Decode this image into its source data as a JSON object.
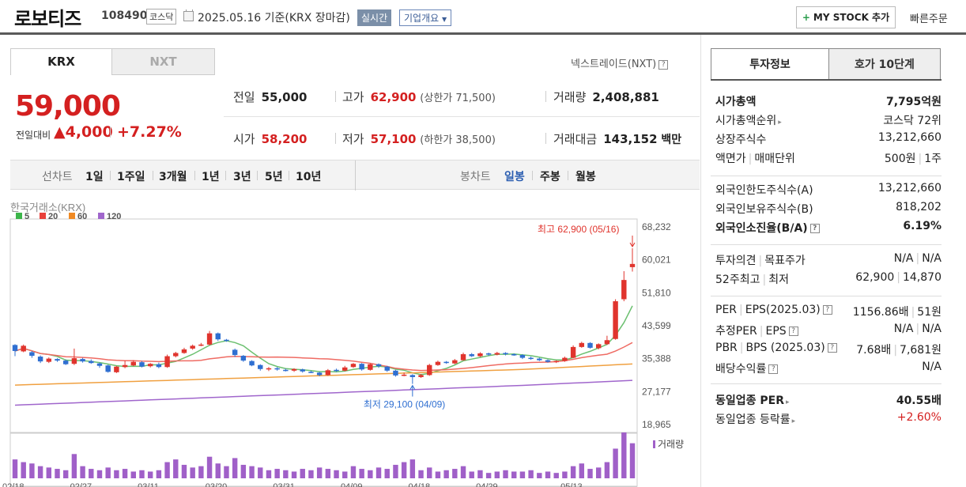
{
  "header": {
    "name": "로보티즈",
    "code": "108490",
    "market": "코스닥",
    "date": "2025.05.16 기준(KRX 장마감)",
    "realtime": "실시간",
    "overview": "기업개요",
    "mystock": "MY STOCK 추가",
    "quick": "빠른주문"
  },
  "exchange_tabs": {
    "krx": "KRX",
    "nxt": "NXT",
    "nextrade": "넥스트레이드(NXT)"
  },
  "price": {
    "current": "59,000",
    "change_label": "전일대비",
    "change": "▲4,000",
    "pct": "+7.27%"
  },
  "stats": {
    "prev_label": "전일",
    "prev": "55,000",
    "high_label": "고가",
    "high": "62,900",
    "upper": "(상한가 71,500)",
    "vol_label": "거래량",
    "vol": "2,408,881",
    "open_label": "시가",
    "open": "58,200",
    "low_label": "저가",
    "low": "57,100",
    "lower": "(하한가 38,500)",
    "amt_label": "거래대금",
    "amt": "143,152",
    "amt_unit": "백만"
  },
  "periods": {
    "line_label": "선차트",
    "line": [
      "1일",
      "1주일",
      "3개월",
      "1년",
      "3년",
      "5년",
      "10년"
    ],
    "candle_label": "봉차트",
    "candle": [
      "일봉",
      "주봉",
      "월봉"
    ]
  },
  "chart_data": {
    "type": "candlestick",
    "source": "한국거래소(KRX)",
    "ma_legend": [
      {
        "name": "5",
        "color": "#3cb54a"
      },
      {
        "name": "20",
        "color": "#e8413b"
      },
      {
        "name": "60",
        "color": "#f08a24"
      },
      {
        "name": "120",
        "color": "#a066cc"
      }
    ],
    "y_ticks": [
      "68,232",
      "60,021",
      "51,810",
      "43,599",
      "35,388",
      "27,177",
      "18,965"
    ],
    "ylim": [
      18965,
      68232
    ],
    "x_ticks": [
      "02/18",
      "02/27",
      "03/11",
      "03/20",
      "03/31",
      "04/09",
      "04/18",
      "04/29",
      "05/13"
    ],
    "high_annotation": "최고 62,900 (05/16)",
    "low_annotation": "최저 29,100 (04/09)",
    "volume_label": "거래량",
    "candles": [
      [
        38800,
        37300,
        39000,
        36000
      ],
      [
        37200,
        38600,
        38900,
        37000
      ],
      [
        37000,
        36100,
        37300,
        35600
      ],
      [
        35900,
        34700,
        36200,
        34300
      ],
      [
        34600,
        35400,
        35700,
        34300
      ],
      [
        35300,
        34900,
        35500,
        34600
      ],
      [
        34900,
        34000,
        35200,
        33800
      ],
      [
        34100,
        35500,
        37900,
        33800
      ],
      [
        35300,
        34700,
        35600,
        34400
      ],
      [
        34800,
        34300,
        35200,
        34100
      ],
      [
        34200,
        33600,
        34400,
        33100
      ],
      [
        33700,
        32100,
        33900,
        31900
      ],
      [
        32000,
        33400,
        33600,
        31800
      ],
      [
        33300,
        33800,
        34900,
        33000
      ],
      [
        33700,
        34600,
        35000,
        33500
      ],
      [
        34500,
        33400,
        34800,
        33200
      ],
      [
        33500,
        34100,
        34300,
        33200
      ],
      [
        34000,
        33300,
        34400,
        33000
      ],
      [
        33300,
        36000,
        36400,
        33100
      ],
      [
        36000,
        36800,
        37100,
        35700
      ],
      [
        36800,
        37700,
        38100,
        36600
      ],
      [
        37900,
        38600,
        38900,
        37600
      ],
      [
        38800,
        38900,
        39300,
        38500
      ],
      [
        38900,
        41700,
        42300,
        38700
      ],
      [
        41700,
        40200,
        41900,
        39800
      ],
      [
        40100,
        39900,
        40300,
        39600
      ],
      [
        37600,
        36300,
        37900,
        35800
      ],
      [
        36100,
        34900,
        36300,
        34600
      ],
      [
        34800,
        33700,
        35000,
        33500
      ],
      [
        33800,
        32800,
        34000,
        32400
      ],
      [
        32700,
        33000,
        33300,
        32300
      ],
      [
        33000,
        32700,
        33300,
        32400
      ],
      [
        32600,
        32400,
        32900,
        32200
      ],
      [
        32400,
        32800,
        33000,
        32100
      ],
      [
        32700,
        32200,
        32900,
        31900
      ],
      [
        32100,
        32000,
        32400,
        31800
      ],
      [
        31900,
        31300,
        32100,
        31000
      ],
      [
        31300,
        32500,
        32800,
        31100
      ],
      [
        32600,
        32400,
        32900,
        32100
      ],
      [
        32400,
        33200,
        33600,
        32200
      ],
      [
        33300,
        34100,
        34300,
        33100
      ],
      [
        34100,
        32700,
        34300,
        32400
      ],
      [
        32600,
        34000,
        34200,
        32400
      ],
      [
        34000,
        33500,
        34200,
        33100
      ],
      [
        33400,
        32400,
        33600,
        32100
      ],
      [
        32400,
        31200,
        32600,
        30900
      ],
      [
        31300,
        31400,
        31900,
        31000
      ],
      [
        31300,
        30800,
        31500,
        29100
      ],
      [
        30800,
        31300,
        31600,
        30600
      ],
      [
        31300,
        33800,
        34100,
        31100
      ],
      [
        33800,
        34600,
        34900,
        33600
      ],
      [
        34600,
        34300,
        34800,
        34100
      ],
      [
        34200,
        35000,
        35300,
        34000
      ],
      [
        35000,
        36500,
        36900,
        34900
      ],
      [
        36500,
        36000,
        36800,
        35800
      ],
      [
        36000,
        36700,
        37000,
        35800
      ],
      [
        36700,
        36400,
        36900,
        36100
      ],
      [
        36400,
        36800,
        37100,
        36200
      ],
      [
        36800,
        36500,
        37000,
        36200
      ],
      [
        36500,
        36300,
        36700,
        36100
      ],
      [
        36300,
        35600,
        36500,
        35300
      ],
      [
        35600,
        35400,
        35900,
        35100
      ],
      [
        35400,
        35000,
        35600,
        34800
      ],
      [
        35000,
        34600,
        35200,
        34400
      ],
      [
        34600,
        34800,
        35000,
        34300
      ],
      [
        34800,
        35600,
        35900,
        34600
      ],
      [
        35600,
        38300,
        38700,
        35500
      ],
      [
        38300,
        39300,
        39600,
        38100
      ],
      [
        39300,
        38100,
        39500,
        37900
      ],
      [
        38000,
        39000,
        39200,
        37700
      ],
      [
        39000,
        40000,
        41100,
        38800
      ],
      [
        40300,
        49700,
        50200,
        40100
      ],
      [
        50200,
        55000,
        57200,
        49700
      ],
      [
        58200,
        59000,
        62900,
        57100
      ]
    ],
    "volumes": [
      14,
      12,
      11,
      9,
      8,
      7,
      6,
      18,
      9,
      7,
      6,
      8,
      6,
      7,
      5,
      6,
      5,
      6,
      12,
      14,
      10,
      8,
      9,
      16,
      11,
      9,
      15,
      10,
      9,
      8,
      6,
      7,
      6,
      5,
      7,
      6,
      8,
      7,
      6,
      5,
      9,
      7,
      6,
      8,
      7,
      10,
      12,
      14,
      6,
      8,
      5,
      6,
      7,
      9,
      5,
      6,
      4,
      5,
      6,
      5,
      5,
      6,
      4,
      5,
      4,
      5,
      9,
      11,
      7,
      8,
      12,
      22,
      34,
      26
    ]
  },
  "right": {
    "tab_a": "투자정보",
    "tab_b": "호가 10단계",
    "rows1": [
      {
        "l": "시가총액",
        "r": "7,795억원",
        "bold": true
      },
      {
        "l": "시가총액순위",
        "r": "코스닥 72위",
        "caret": true
      },
      {
        "l": "상장주식수",
        "r": "13,212,660"
      },
      {
        "l": "액면가",
        "l2": "매매단위",
        "r": "500원",
        "r2": "1주"
      }
    ],
    "rows2": [
      {
        "l": "외국인한도주식수(A)",
        "r": "13,212,660"
      },
      {
        "l": "외국인보유주식수(B)",
        "r": "818,202"
      },
      {
        "l": "외국인소진율(B/A)",
        "r": "6.19%",
        "bold": true,
        "q": true
      }
    ],
    "rows3": [
      {
        "l": "투자의견",
        "l2": "목표주가",
        "r": "N/A",
        "r2": "N/A"
      },
      {
        "l": "52주최고",
        "l2": "최저",
        "r": "62,900",
        "r2": "14,870"
      }
    ],
    "rows4": [
      {
        "l": "PER",
        "l2": "EPS(2025.03)",
        "r": "1156.86배",
        "r2": "51원",
        "q": true
      },
      {
        "l": "추정PER",
        "l2": "EPS",
        "r": "N/A",
        "r2": "N/A",
        "q": true
      },
      {
        "l": "PBR",
        "l2": "BPS (2025.03)",
        "r": "7.68배",
        "r2": "7,681원",
        "q": true
      },
      {
        "l": "배당수익률",
        "r": "N/A",
        "q": true
      }
    ],
    "rows5": [
      {
        "l": "동일업종 PER",
        "r": "40.55배",
        "bold": true,
        "caret": true
      },
      {
        "l": "동일업종 등락률",
        "r": "+2.60%",
        "red": true,
        "caret": true
      }
    ]
  }
}
